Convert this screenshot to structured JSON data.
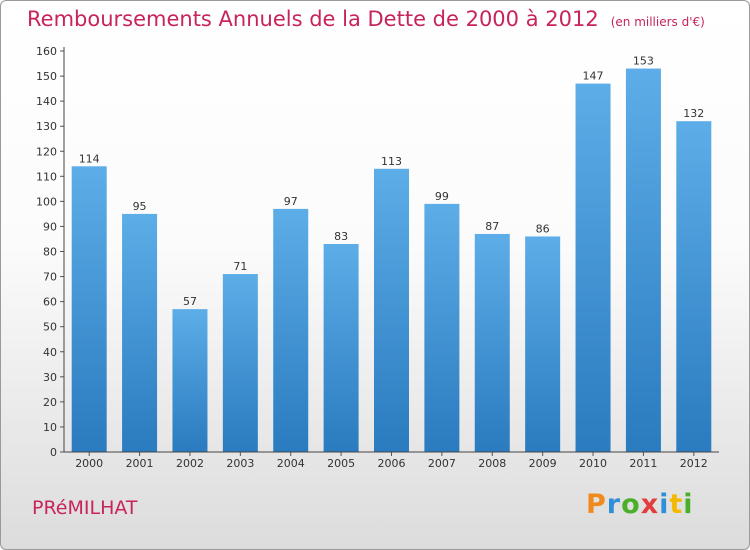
{
  "header": {
    "title": "Remboursements Annuels de la Dette de 2000 à 2012",
    "unit": "(en milliers d'€)"
  },
  "footer": {
    "commune": "PRéMILHAT",
    "logo": [
      {
        "char": "P",
        "color": "#f08a1c"
      },
      {
        "char": "r",
        "color": "#2f8fd8"
      },
      {
        "char": "o",
        "color": "#4caf2a"
      },
      {
        "char": "x",
        "color": "#e23c3c"
      },
      {
        "char": "i",
        "color": "#2f8fd8"
      },
      {
        "char": "t",
        "color": "#f5b800"
      },
      {
        "char": "i",
        "color": "#4caf2a"
      }
    ]
  },
  "colors": {
    "title": "#c8245a",
    "bar_light": "#5dade8",
    "bar_dark": "#2a7bbf"
  },
  "chart_data": {
    "type": "bar",
    "categories": [
      "2000",
      "2001",
      "2002",
      "2003",
      "2004",
      "2005",
      "2006",
      "2007",
      "2008",
      "2009",
      "2010",
      "2011",
      "2012"
    ],
    "values": [
      114,
      95,
      57,
      71,
      97,
      83,
      113,
      99,
      87,
      86,
      147,
      153,
      132
    ],
    "ylim": [
      0,
      160
    ],
    "ytick_step": 10,
    "grid": false,
    "legend": "none"
  }
}
